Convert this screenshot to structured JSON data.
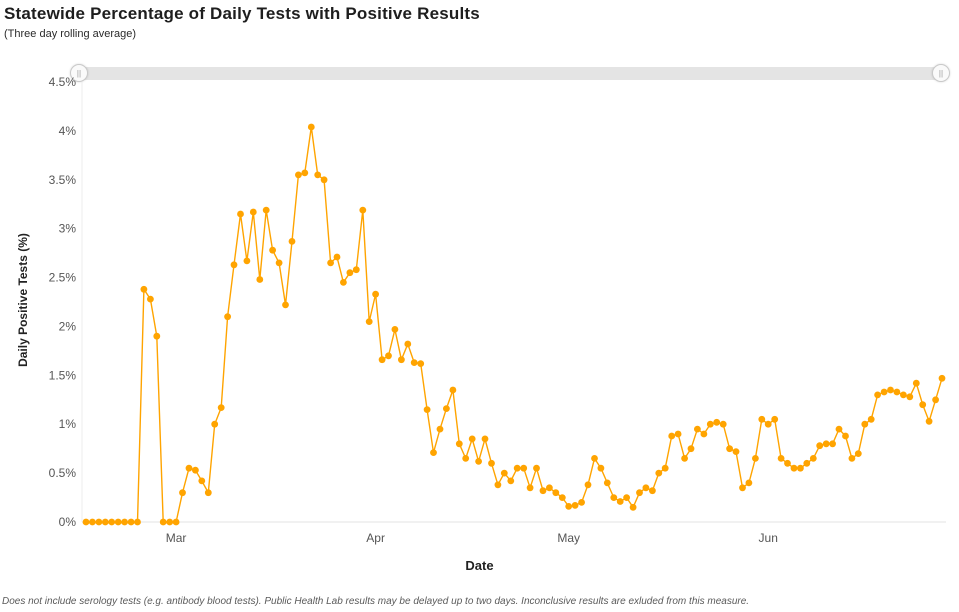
{
  "header": {
    "title": "Statewide Percentage of Daily Tests with Positive Results",
    "subtitle": "(Three day rolling average)"
  },
  "icons": {
    "slider_grip": "||"
  },
  "chart_data": {
    "type": "line",
    "title": "Statewide Percentage of Daily Tests with Positive Results",
    "subtitle": "(Three day rolling average)",
    "xlabel": "Date",
    "ylabel": "Daily Positive Tests (%)",
    "ylim": [
      0,
      4.5
    ],
    "grid": false,
    "legend": false,
    "marker": "circle",
    "line_color": "#FFA400",
    "tick_color": "#555555",
    "y_ticks": [
      {
        "value": 0.0,
        "label": "0%"
      },
      {
        "value": 0.5,
        "label": "0.5%"
      },
      {
        "value": 1.0,
        "label": "1%"
      },
      {
        "value": 1.5,
        "label": "1.5%"
      },
      {
        "value": 2.0,
        "label": "2%"
      },
      {
        "value": 2.5,
        "label": "2.5%"
      },
      {
        "value": 3.0,
        "label": "3%"
      },
      {
        "value": 3.5,
        "label": "3.5%"
      },
      {
        "value": 4.0,
        "label": "4%"
      },
      {
        "value": 4.5,
        "label": "4.5%"
      }
    ],
    "x_ticks": [
      {
        "index": 14,
        "label": "Mar"
      },
      {
        "index": 45,
        "label": "Apr"
      },
      {
        "index": 75,
        "label": "May"
      },
      {
        "index": 106,
        "label": "Jun"
      }
    ],
    "values": [
      0,
      0,
      0,
      0,
      0,
      0,
      0,
      0,
      0,
      2.38,
      2.28,
      1.9,
      0,
      0,
      0,
      0.3,
      0.55,
      0.53,
      0.42,
      0.3,
      1.0,
      1.17,
      2.1,
      2.63,
      3.15,
      2.67,
      3.17,
      2.48,
      3.19,
      2.78,
      2.65,
      2.22,
      2.87,
      3.55,
      3.57,
      4.04,
      3.55,
      3.5,
      2.65,
      2.71,
      2.45,
      2.55,
      2.58,
      3.19,
      2.05,
      2.33,
      1.66,
      1.7,
      1.97,
      1.66,
      1.82,
      1.63,
      1.62,
      1.15,
      0.71,
      0.95,
      1.16,
      1.35,
      0.8,
      0.65,
      0.85,
      0.62,
      0.85,
      0.6,
      0.38,
      0.5,
      0.42,
      0.55,
      0.55,
      0.35,
      0.55,
      0.32,
      0.35,
      0.3,
      0.25,
      0.16,
      0.17,
      0.2,
      0.38,
      0.65,
      0.55,
      0.4,
      0.25,
      0.21,
      0.25,
      0.15,
      0.3,
      0.35,
      0.32,
      0.5,
      0.55,
      0.88,
      0.9,
      0.65,
      0.75,
      0.95,
      0.9,
      1.0,
      1.02,
      1.0,
      0.75,
      0.72,
      0.35,
      0.4,
      0.65,
      1.05,
      1.0,
      1.05,
      0.65,
      0.6,
      0.55,
      0.55,
      0.6,
      0.65,
      0.78,
      0.8,
      0.8,
      0.95,
      0.88,
      0.65,
      0.7,
      1.0,
      1.05,
      1.3,
      1.33,
      1.35,
      1.33,
      1.3,
      1.28,
      1.42,
      1.2,
      1.03,
      1.25,
      1.47
    ]
  },
  "footer": {
    "note": "Does not include serology tests (e.g. antibody blood tests). Public Health Lab results may be delayed up to two days. Inconclusive results are exluded from this measure."
  }
}
